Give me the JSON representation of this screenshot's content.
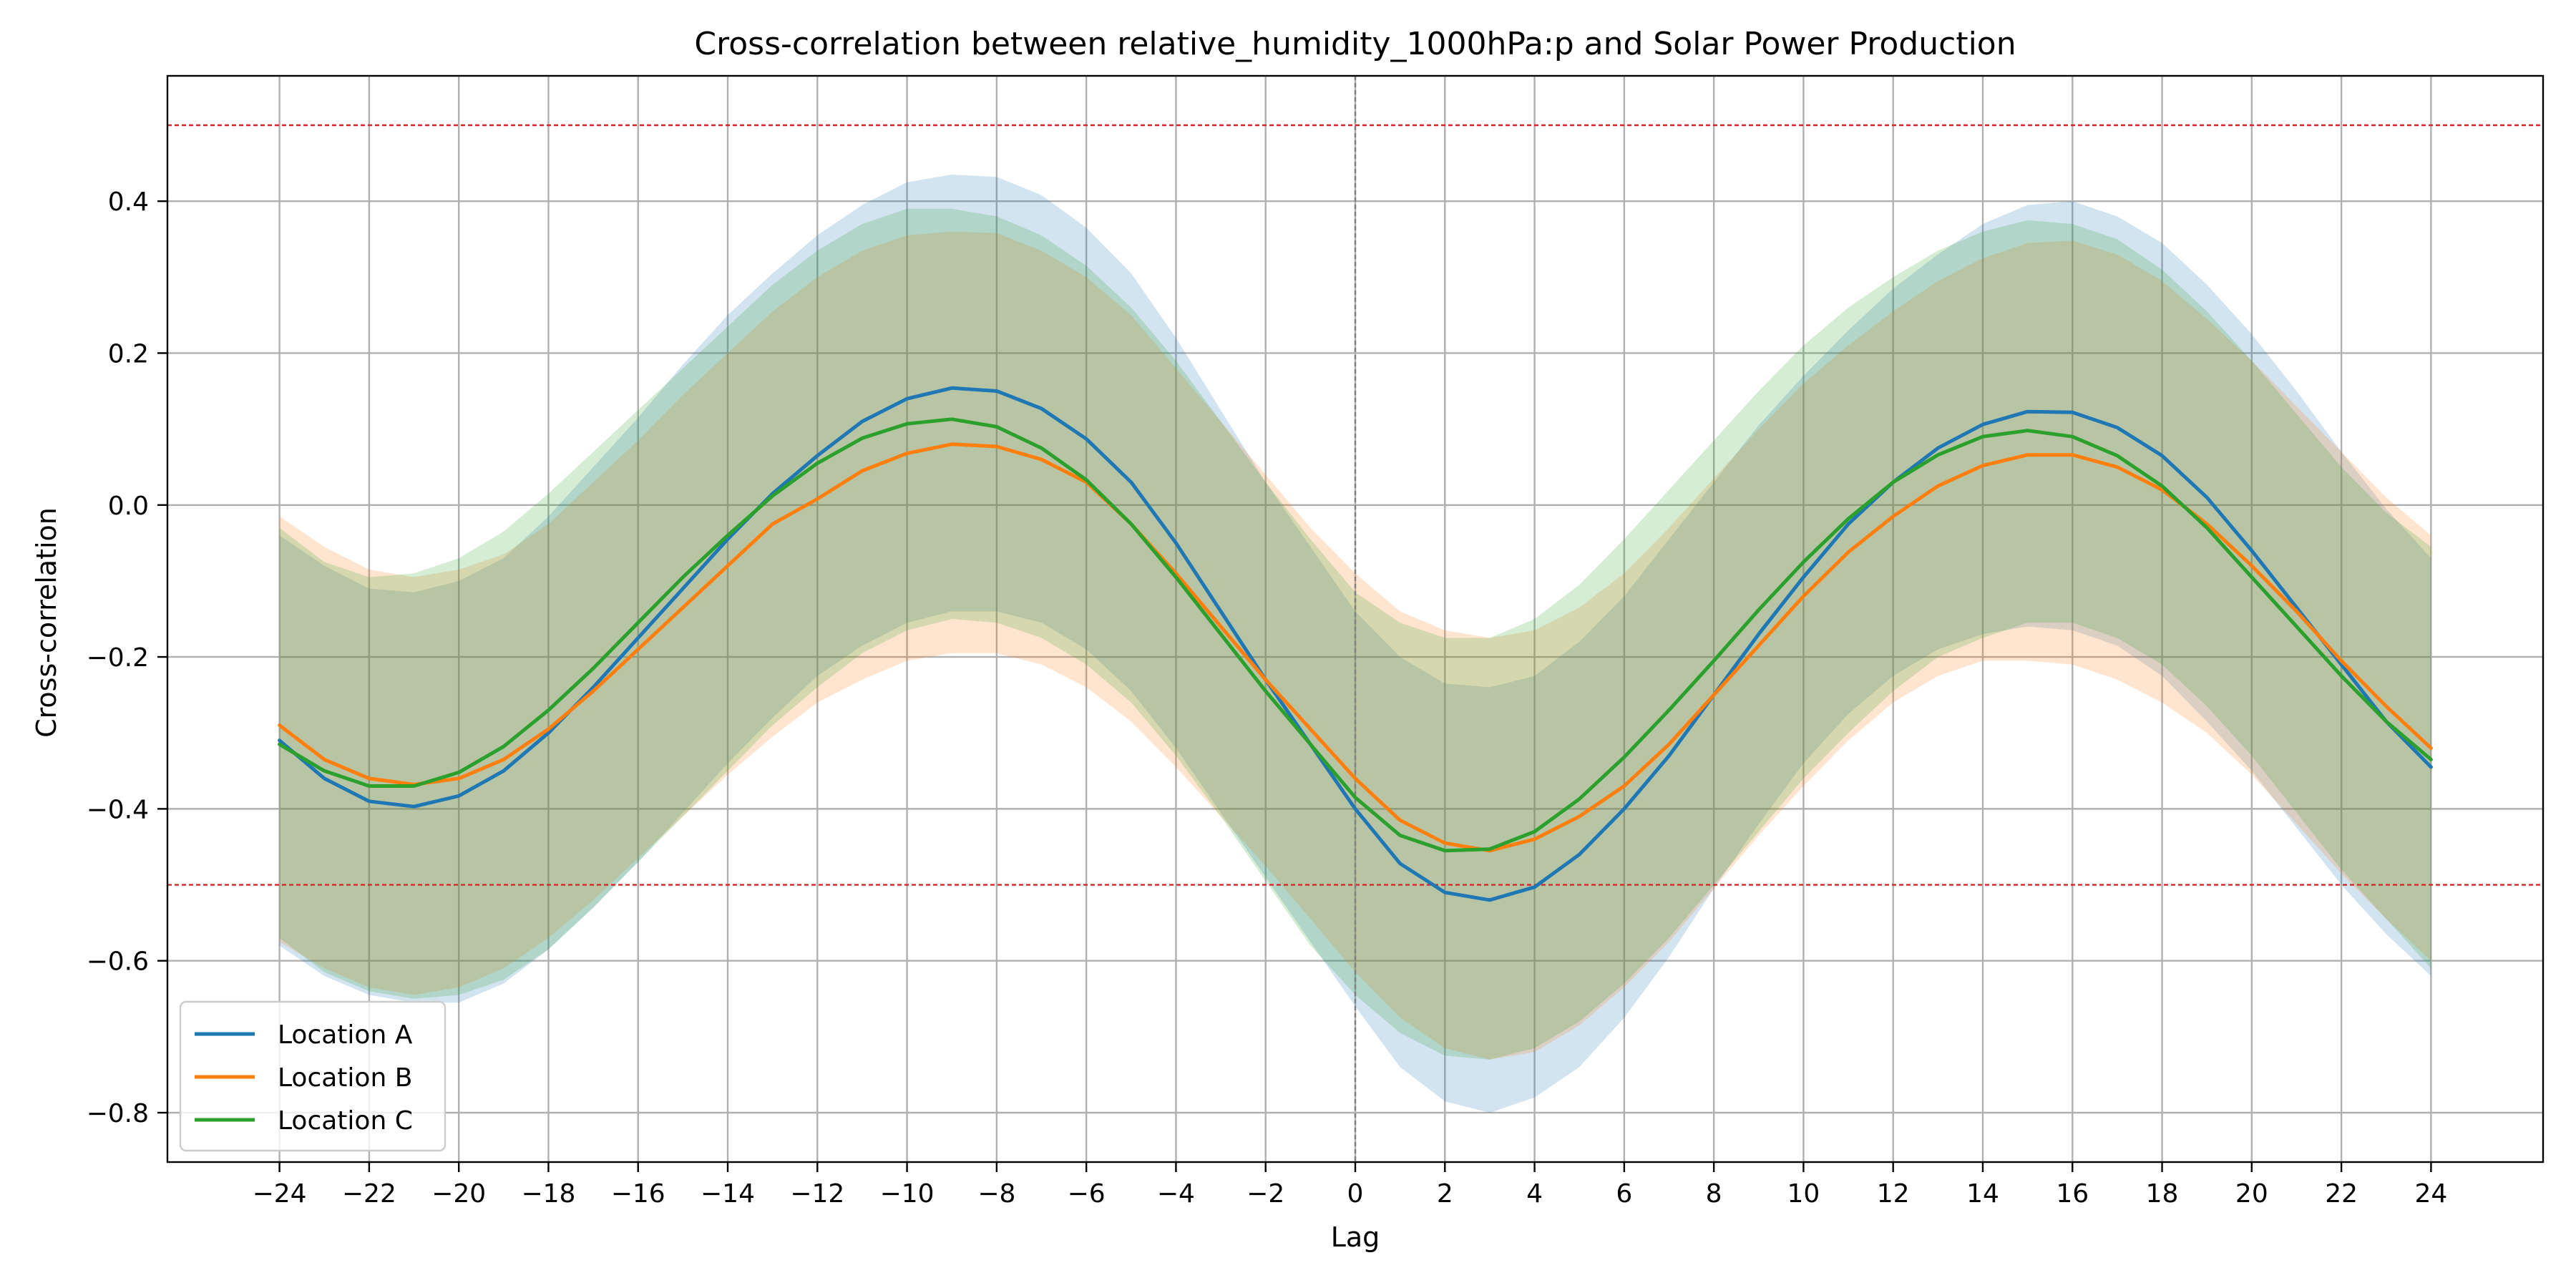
{
  "chart_data": {
    "type": "line",
    "title": "Cross-correlation between relative_humidity_1000hPa:p and Solar Power Production",
    "xlabel": "Lag",
    "ylabel": "Cross-correlation",
    "xlim": [
      -26.5,
      26.5
    ],
    "ylim": [
      -0.865,
      0.565
    ],
    "x_ticks": [
      -24,
      -22,
      -20,
      -18,
      -16,
      -14,
      -12,
      -10,
      -8,
      -6,
      -4,
      -2,
      0,
      2,
      4,
      6,
      8,
      10,
      12,
      14,
      16,
      18,
      20,
      22,
      24
    ],
    "x_tick_labels": [
      "−24",
      "−22",
      "−20",
      "−18",
      "−16",
      "−14",
      "−12",
      "−10",
      "−8",
      "−6",
      "−4",
      "−2",
      "0",
      "2",
      "4",
      "6",
      "8",
      "10",
      "12",
      "14",
      "16",
      "18",
      "20",
      "22",
      "24"
    ],
    "y_ticks": [
      -0.8,
      -0.6,
      -0.4,
      -0.2,
      0.0,
      0.2,
      0.4
    ],
    "y_tick_labels": [
      "−0.8",
      "−0.6",
      "−0.4",
      "−0.2",
      "0.0",
      "0.2",
      "0.4"
    ],
    "grid": true,
    "legend_position": "lower-left",
    "reference_lines": [
      {
        "y": 0.5,
        "color": "#d62728",
        "style": "dashed"
      },
      {
        "y": -0.5,
        "color": "#d62728",
        "style": "dashed"
      },
      {
        "x": 0,
        "color": "#808080",
        "style": "dashed"
      }
    ],
    "x": [
      -24,
      -23,
      -22,
      -21,
      -20,
      -19,
      -18,
      -17,
      -16,
      -15,
      -14,
      -13,
      -12,
      -11,
      -10,
      -9,
      -8,
      -7,
      -6,
      -5,
      -4,
      -3,
      -2,
      -1,
      0,
      1,
      2,
      3,
      4,
      5,
      6,
      7,
      8,
      9,
      10,
      11,
      12,
      13,
      14,
      15,
      16,
      17,
      18,
      19,
      20,
      21,
      22,
      23,
      24
    ],
    "series": [
      {
        "name": "Location A",
        "color": "#1f77b4",
        "band_alpha": 0.2,
        "values": [
          -0.31,
          -0.36,
          -0.39,
          -0.397,
          -0.383,
          -0.35,
          -0.3,
          -0.24,
          -0.175,
          -0.11,
          -0.045,
          0.015,
          0.065,
          0.11,
          0.14,
          0.154,
          0.15,
          0.127,
          0.087,
          0.03,
          -0.05,
          -0.14,
          -0.23,
          -0.315,
          -0.4,
          -0.472,
          -0.51,
          -0.52,
          -0.503,
          -0.46,
          -0.4,
          -0.33,
          -0.25,
          -0.17,
          -0.095,
          -0.025,
          0.03,
          0.075,
          0.106,
          0.123,
          0.122,
          0.102,
          0.065,
          0.01,
          -0.06,
          -0.135,
          -0.21,
          -0.285,
          -0.345
        ],
        "lower": [
          -0.58,
          -0.62,
          -0.645,
          -0.655,
          -0.655,
          -0.63,
          -0.585,
          -0.53,
          -0.47,
          -0.405,
          -0.34,
          -0.28,
          -0.225,
          -0.185,
          -0.155,
          -0.14,
          -0.14,
          -0.155,
          -0.19,
          -0.245,
          -0.32,
          -0.405,
          -0.49,
          -0.575,
          -0.66,
          -0.74,
          -0.785,
          -0.8,
          -0.78,
          -0.74,
          -0.675,
          -0.595,
          -0.505,
          -0.42,
          -0.34,
          -0.275,
          -0.225,
          -0.19,
          -0.17,
          -0.16,
          -0.165,
          -0.185,
          -0.225,
          -0.285,
          -0.35,
          -0.425,
          -0.5,
          -0.565,
          -0.62
        ],
        "upper": [
          -0.04,
          -0.08,
          -0.11,
          -0.115,
          -0.1,
          -0.07,
          -0.015,
          0.05,
          0.115,
          0.185,
          0.25,
          0.305,
          0.355,
          0.395,
          0.425,
          0.435,
          0.432,
          0.408,
          0.365,
          0.305,
          0.22,
          0.125,
          0.03,
          -0.055,
          -0.14,
          -0.2,
          -0.235,
          -0.24,
          -0.225,
          -0.18,
          -0.12,
          -0.045,
          0.03,
          0.105,
          0.17,
          0.23,
          0.285,
          0.33,
          0.37,
          0.395,
          0.4,
          0.38,
          0.345,
          0.29,
          0.225,
          0.15,
          0.07,
          -0.005,
          -0.07
        ]
      },
      {
        "name": "Location B",
        "color": "#ff7f0e",
        "band_alpha": 0.2,
        "values": [
          -0.29,
          -0.335,
          -0.36,
          -0.368,
          -0.36,
          -0.335,
          -0.295,
          -0.245,
          -0.19,
          -0.135,
          -0.08,
          -0.025,
          0.008,
          0.045,
          0.068,
          0.08,
          0.077,
          0.06,
          0.03,
          -0.025,
          -0.09,
          -0.16,
          -0.23,
          -0.295,
          -0.36,
          -0.415,
          -0.445,
          -0.455,
          -0.44,
          -0.41,
          -0.37,
          -0.315,
          -0.25,
          -0.185,
          -0.12,
          -0.062,
          -0.015,
          0.025,
          0.052,
          0.066,
          0.066,
          0.05,
          0.02,
          -0.025,
          -0.08,
          -0.14,
          -0.205,
          -0.265,
          -0.32
        ],
        "lower": [
          -0.575,
          -0.61,
          -0.635,
          -0.645,
          -0.635,
          -0.61,
          -0.57,
          -0.52,
          -0.465,
          -0.41,
          -0.355,
          -0.305,
          -0.26,
          -0.23,
          -0.205,
          -0.195,
          -0.195,
          -0.21,
          -0.24,
          -0.285,
          -0.345,
          -0.41,
          -0.475,
          -0.545,
          -0.615,
          -0.675,
          -0.715,
          -0.73,
          -0.72,
          -0.685,
          -0.635,
          -0.575,
          -0.505,
          -0.435,
          -0.37,
          -0.31,
          -0.26,
          -0.225,
          -0.205,
          -0.205,
          -0.21,
          -0.23,
          -0.26,
          -0.3,
          -0.355,
          -0.42,
          -0.485,
          -0.545,
          -0.6
        ],
        "upper": [
          -0.015,
          -0.055,
          -0.085,
          -0.095,
          -0.085,
          -0.065,
          -0.025,
          0.03,
          0.085,
          0.145,
          0.2,
          0.255,
          0.3,
          0.335,
          0.355,
          0.36,
          0.358,
          0.335,
          0.3,
          0.25,
          0.18,
          0.11,
          0.04,
          -0.03,
          -0.09,
          -0.14,
          -0.165,
          -0.175,
          -0.165,
          -0.135,
          -0.09,
          -0.03,
          0.035,
          0.1,
          0.16,
          0.21,
          0.255,
          0.295,
          0.325,
          0.345,
          0.348,
          0.33,
          0.295,
          0.245,
          0.19,
          0.13,
          0.07,
          0.01,
          -0.04
        ]
      },
      {
        "name": "Location C",
        "color": "#2ca02c",
        "band_alpha": 0.2,
        "values": [
          -0.315,
          -0.35,
          -0.37,
          -0.37,
          -0.352,
          -0.318,
          -0.27,
          -0.215,
          -0.155,
          -0.095,
          -0.04,
          0.012,
          0.055,
          0.088,
          0.107,
          0.113,
          0.103,
          0.075,
          0.033,
          -0.025,
          -0.095,
          -0.17,
          -0.245,
          -0.315,
          -0.385,
          -0.435,
          -0.455,
          -0.453,
          -0.43,
          -0.387,
          -0.332,
          -0.27,
          -0.205,
          -0.138,
          -0.075,
          -0.018,
          0.03,
          0.066,
          0.09,
          0.098,
          0.09,
          0.065,
          0.025,
          -0.03,
          -0.095,
          -0.16,
          -0.225,
          -0.285,
          -0.335
        ],
        "lower": [
          -0.57,
          -0.615,
          -0.64,
          -0.65,
          -0.645,
          -0.625,
          -0.585,
          -0.53,
          -0.47,
          -0.41,
          -0.35,
          -0.29,
          -0.24,
          -0.195,
          -0.165,
          -0.15,
          -0.155,
          -0.175,
          -0.21,
          -0.26,
          -0.33,
          -0.41,
          -0.495,
          -0.58,
          -0.645,
          -0.695,
          -0.725,
          -0.73,
          -0.715,
          -0.68,
          -0.63,
          -0.57,
          -0.5,
          -0.43,
          -0.36,
          -0.3,
          -0.245,
          -0.2,
          -0.175,
          -0.155,
          -0.155,
          -0.175,
          -0.21,
          -0.265,
          -0.33,
          -0.405,
          -0.48,
          -0.545,
          -0.61
        ],
        "upper": [
          -0.03,
          -0.075,
          -0.095,
          -0.09,
          -0.07,
          -0.035,
          0.015,
          0.07,
          0.125,
          0.18,
          0.235,
          0.29,
          0.335,
          0.37,
          0.39,
          0.39,
          0.38,
          0.355,
          0.315,
          0.26,
          0.19,
          0.11,
          0.03,
          -0.045,
          -0.115,
          -0.155,
          -0.175,
          -0.175,
          -0.15,
          -0.105,
          -0.045,
          0.02,
          0.085,
          0.15,
          0.21,
          0.26,
          0.3,
          0.335,
          0.36,
          0.375,
          0.37,
          0.35,
          0.31,
          0.255,
          0.19,
          0.12,
          0.05,
          -0.01,
          -0.055
        ]
      }
    ]
  }
}
